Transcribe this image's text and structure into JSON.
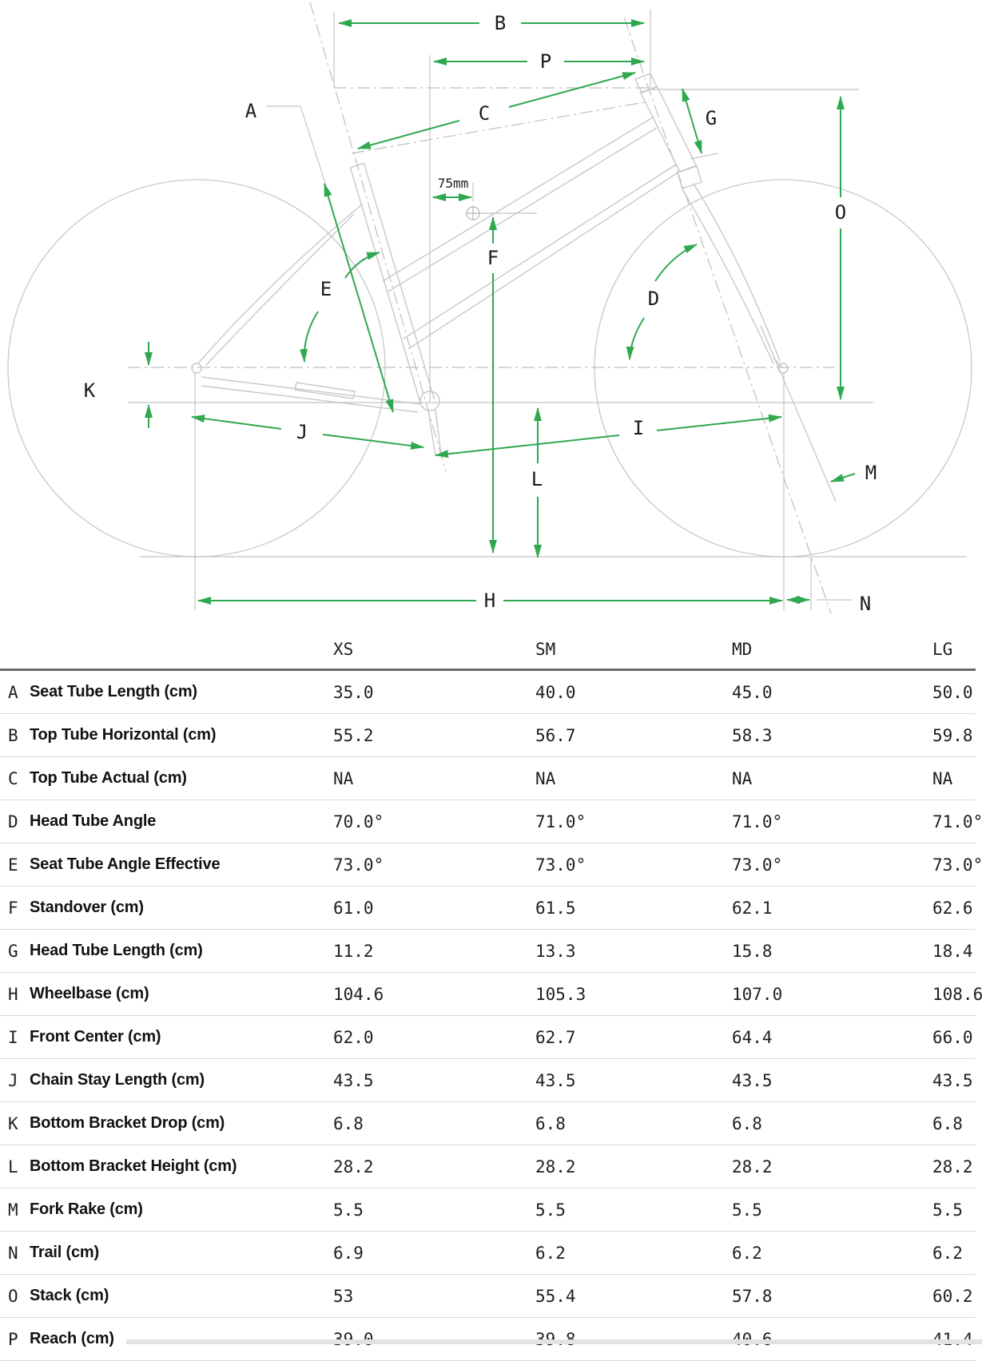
{
  "diagram": {
    "labels": {
      "A": "A",
      "B": "B",
      "C": "C",
      "D": "D",
      "E": "E",
      "F": "F",
      "G": "G",
      "H": "H",
      "I": "I",
      "J": "J",
      "K": "K",
      "L": "L",
      "M": "M",
      "N": "N",
      "O": "O",
      "P": "P"
    },
    "offset_label": "75mm",
    "accent_color": "#2fa850",
    "frame_color": "#c6c8c7"
  },
  "table": {
    "size_headers": [
      "XS",
      "SM",
      "MD",
      "LG"
    ],
    "rows": [
      {
        "letter": "A",
        "label": "Seat Tube Length (cm)",
        "values": [
          "35.0",
          "40.0",
          "45.0",
          "50.0"
        ]
      },
      {
        "letter": "B",
        "label": "Top Tube Horizontal (cm)",
        "values": [
          "55.2",
          "56.7",
          "58.3",
          "59.8"
        ]
      },
      {
        "letter": "C",
        "label": "Top Tube Actual (cm)",
        "values": [
          "NA",
          "NA",
          "NA",
          "NA"
        ]
      },
      {
        "letter": "D",
        "label": "Head Tube Angle",
        "values": [
          "70.0°",
          "71.0°",
          "71.0°",
          "71.0°"
        ]
      },
      {
        "letter": "E",
        "label": "Seat Tube Angle Effective",
        "values": [
          "73.0°",
          "73.0°",
          "73.0°",
          "73.0°"
        ]
      },
      {
        "letter": "F",
        "label": "Standover (cm)",
        "values": [
          "61.0",
          "61.5",
          "62.1",
          "62.6"
        ]
      },
      {
        "letter": "G",
        "label": "Head Tube Length (cm)",
        "values": [
          "11.2",
          "13.3",
          "15.8",
          "18.4"
        ]
      },
      {
        "letter": "H",
        "label": "Wheelbase (cm)",
        "values": [
          "104.6",
          "105.3",
          "107.0",
          "108.6"
        ]
      },
      {
        "letter": "I",
        "label": "Front Center (cm)",
        "values": [
          "62.0",
          "62.7",
          "64.4",
          "66.0"
        ]
      },
      {
        "letter": "J",
        "label": "Chain Stay Length (cm)",
        "values": [
          "43.5",
          "43.5",
          "43.5",
          "43.5"
        ]
      },
      {
        "letter": "K",
        "label": "Bottom Bracket Drop (cm)",
        "values": [
          "6.8",
          "6.8",
          "6.8",
          "6.8"
        ]
      },
      {
        "letter": "L",
        "label": "Bottom Bracket Height (cm)",
        "values": [
          "28.2",
          "28.2",
          "28.2",
          "28.2"
        ]
      },
      {
        "letter": "M",
        "label": "Fork Rake (cm)",
        "values": [
          "5.5",
          "5.5",
          "5.5",
          "5.5"
        ]
      },
      {
        "letter": "N",
        "label": "Trail (cm)",
        "values": [
          "6.9",
          "6.2",
          "6.2",
          "6.2"
        ]
      },
      {
        "letter": "O",
        "label": "Stack (cm)",
        "values": [
          "53",
          "55.4",
          "57.8",
          "60.2"
        ]
      },
      {
        "letter": "P",
        "label": "Reach (cm)",
        "values": [
          "39.0",
          "39.8",
          "40.6",
          "41.4"
        ]
      }
    ]
  }
}
